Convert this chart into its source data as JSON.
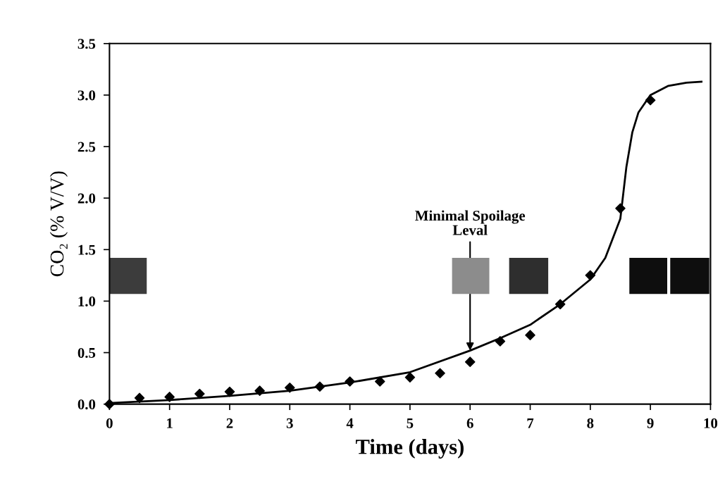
{
  "chart_data": {
    "type": "scatter",
    "xlabel": "Time (days)",
    "ylabel": "CO₂ (% V/V)",
    "x": [
      0,
      0.5,
      1,
      1.5,
      2,
      2.5,
      3,
      3.5,
      4,
      4.5,
      5,
      5.5,
      6,
      6.5,
      7,
      7.5,
      8,
      8.5,
      9
    ],
    "series": [
      {
        "color": "#000000",
        "marker": "diamond",
        "values": [
          0.0,
          0.06,
          0.07,
          0.1,
          0.12,
          0.13,
          0.16,
          0.17,
          0.22,
          0.22,
          0.26,
          0.3,
          0.41,
          0.61,
          0.67,
          0.97,
          1.25,
          1.9,
          2.95
        ]
      },
      {
        "type": "line",
        "color": "#000000",
        "marker": "none",
        "line_style": "solid",
        "x": [
          0,
          1,
          2,
          3,
          4,
          5,
          6,
          6.5,
          7,
          7.5,
          8,
          8.25,
          8.5,
          8.6,
          8.7,
          8.8,
          9,
          9.3,
          9.6,
          9.85
        ],
        "values": [
          0.01,
          0.04,
          0.08,
          0.13,
          0.21,
          0.31,
          0.52,
          0.64,
          0.77,
          0.97,
          1.21,
          1.42,
          1.8,
          2.3,
          2.64,
          2.83,
          3.0,
          3.09,
          3.12,
          3.13
        ]
      }
    ],
    "annotations": [
      {
        "text": "Minimal Spoilage\nLeval",
        "x": 6,
        "y": 0.52
      }
    ],
    "xlim": [
      0,
      10
    ],
    "xticks": [
      0,
      1,
      2,
      3,
      4,
      5,
      6,
      7,
      8,
      9,
      10
    ],
    "ylim": [
      0,
      3.5
    ],
    "yticks": [
      {
        "value": 0,
        "label": "0.0"
      },
      0.5,
      {
        "value": 1,
        "label": "1.0"
      },
      1.5,
      {
        "value": 2,
        "label": "2.0"
      },
      2.5,
      {
        "value": 3,
        "label": "3.0"
      },
      3.5
    ],
    "grid": false,
    "legend": false
  }
}
